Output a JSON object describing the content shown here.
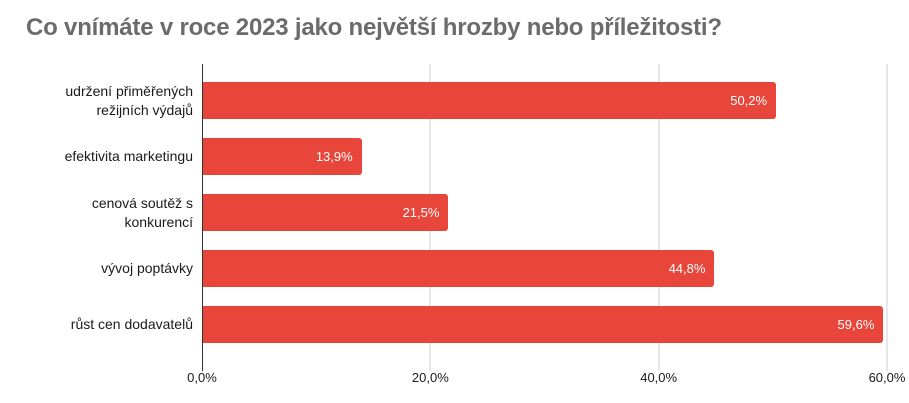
{
  "colors": {
    "bar": "#e8463b",
    "title_text": "#6b6b6b",
    "label_text": "#1a1a1a",
    "value_text": "#ffffff",
    "gridline": "#cfcfcf",
    "axis_line": "#333333",
    "background": "#ffffff"
  },
  "chart_data": {
    "type": "bar",
    "orientation": "horizontal",
    "title": "Co vnímáte v roce 2023 jako největší hrozby nebo příležitosti?",
    "categories": [
      "udržení přiměřených režijních výdajů",
      "efektivita marketingu",
      "cenová soutěž s konkurencí",
      "vývoj poptávky",
      "růst cen dodavatelů"
    ],
    "values": [
      50.2,
      13.9,
      21.5,
      44.8,
      59.6
    ],
    "value_labels": [
      "50,2%",
      "13,9%",
      "21,5%",
      "44,8%",
      "59,6%"
    ],
    "value_label_position": "inside-end",
    "xlabel": "",
    "ylabel": "",
    "xlim": [
      0,
      60
    ],
    "x_ticks": [
      0,
      20,
      40,
      60
    ],
    "x_tick_labels": [
      "0,0%",
      "20,0%",
      "40,0%",
      "60,0%"
    ],
    "grid": true,
    "legend": false
  }
}
